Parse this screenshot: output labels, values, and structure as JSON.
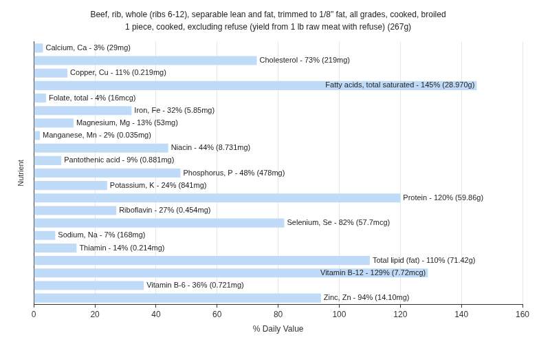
{
  "chart_data": {
    "type": "bar",
    "orientation": "horizontal",
    "title": "Beef, rib, whole (ribs 6-12), separable lean and fat, trimmed to 1/8\" fat, all grades, cooked, broiled",
    "subtitle": "1 piece, cooked, excluding refuse (yield from 1 lb raw meat with refuse) (267g)",
    "x_label": "% Daily Value",
    "y_label": "Nutrient",
    "categories": [
      "Calcium, Ca - 3% (29mg)",
      "Cholesterol - 73% (219mg)",
      "Copper, Cu - 11% (0.219mg)",
      "Fatty acids, total saturated - 145% (28.970g)",
      "Folate, total - 4% (16mcg)",
      "Iron, Fe - 32% (5.85mg)",
      "Magnesium, Mg - 13% (53mg)",
      "Manganese, Mn - 2% (0.035mg)",
      "Niacin - 44% (8.731mg)",
      "Pantothenic acid - 9% (0.881mg)",
      "Phosphorus, P - 48% (478mg)",
      "Potassium, K - 24% (841mg)",
      "Protein - 120% (59.86g)",
      "Riboflavin - 27% (0.454mg)",
      "Selenium, Se - 82% (57.7mcg)",
      "Sodium, Na - 7% (168mg)",
      "Thiamin - 14% (0.214mg)",
      "Total lipid (fat) - 110% (71.42g)",
      "Vitamin B-12 - 129% (7.72mcg)",
      "Vitamin B-6 - 36% (0.721mg)",
      "Zinc, Zn - 94% (14.10mg)"
    ],
    "values": [
      3,
      73,
      11,
      145,
      4,
      32,
      13,
      2,
      44,
      9,
      48,
      24,
      120,
      27,
      82,
      7,
      14,
      110,
      129,
      36,
      94
    ],
    "color": "#bfdbf7",
    "xlim": [
      0,
      160
    ],
    "xticks": [
      0,
      20,
      40,
      60,
      80,
      100,
      120,
      140,
      160
    ],
    "grid": true,
    "tick_labels": "x"
  }
}
